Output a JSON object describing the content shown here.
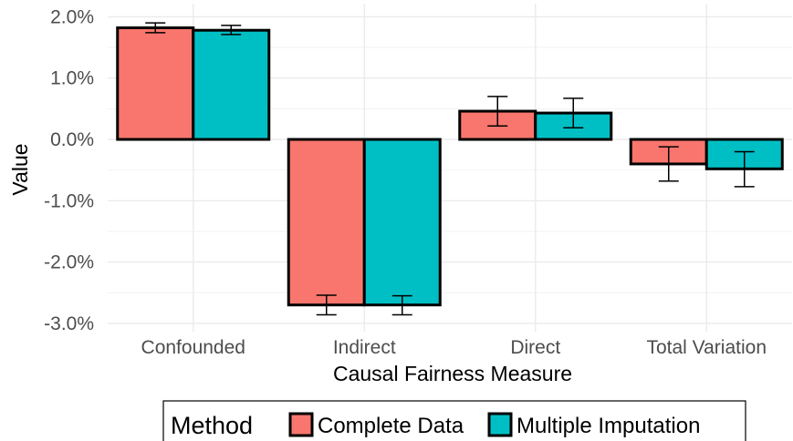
{
  "chart_data": {
    "type": "bar",
    "categories": [
      "Confounded",
      "Indirect",
      "Direct",
      "Total Variation"
    ],
    "series": [
      {
        "name": "Complete Data",
        "color": "#F8766D",
        "values": [
          1.82,
          -2.7,
          0.46,
          -0.4
        ],
        "error_low": [
          1.74,
          -2.86,
          0.22,
          -0.68
        ],
        "error_high": [
          1.9,
          -2.54,
          0.7,
          -0.12
        ]
      },
      {
        "name": "Multiple Imputation",
        "color": "#00BFC4",
        "values": [
          1.78,
          -2.7,
          0.43,
          -0.48
        ],
        "error_low": [
          1.71,
          -2.86,
          0.19,
          -0.77
        ],
        "error_high": [
          1.86,
          -2.55,
          0.67,
          -0.2
        ]
      }
    ],
    "xlabel": "Causal Fairness Measure",
    "ylabel": "Value",
    "ylim": [
      -3.0,
      2.0
    ],
    "yticks": [
      2.0,
      1.0,
      0.0,
      -1.0,
      -2.0,
      -3.0
    ],
    "ytick_labels": [
      "2.0%",
      "1.0%",
      "0.0%",
      "-1.0%",
      "-2.0%",
      "-3.0%"
    ],
    "grid": true,
    "legend": {
      "title": "Method",
      "position": "bottom"
    }
  }
}
